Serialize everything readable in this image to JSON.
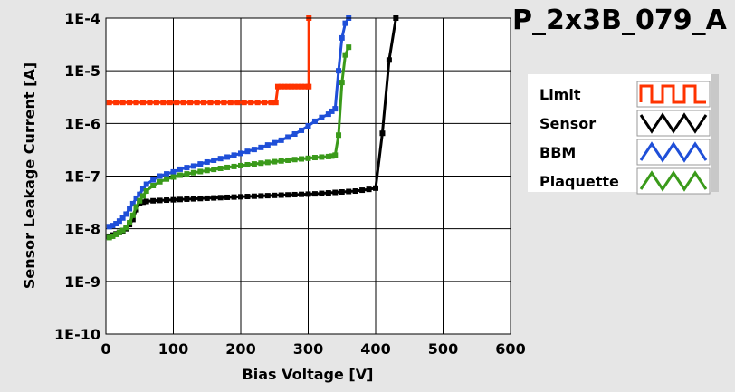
{
  "chart_data": {
    "type": "line",
    "title": "P_2x3B_079_A",
    "xlabel": "Bias Voltage [V]",
    "ylabel": "Sensor Leakage Current [A]",
    "xlim": [
      0,
      600
    ],
    "ylim": [
      1e-10,
      0.0001
    ],
    "yscale": "log",
    "grid": true,
    "legend_position": "right",
    "x_ticks": [
      "0",
      "100",
      "200",
      "300",
      "400",
      "500",
      "600"
    ],
    "y_ticks": [
      "1E-10",
      "1E-9",
      "1E-8",
      "1E-7",
      "1E-6",
      "1E-5",
      "1E-4"
    ],
    "series": [
      {
        "name": "Limit",
        "color": "#ff3300",
        "marker": "square",
        "x": [
          5,
          15,
          25,
          35,
          45,
          55,
          65,
          75,
          85,
          95,
          105,
          115,
          125,
          135,
          145,
          155,
          165,
          175,
          185,
          195,
          205,
          215,
          225,
          235,
          245,
          252,
          255,
          260,
          265,
          270,
          275,
          280,
          285,
          290,
          295,
          300,
          301,
          301
        ],
        "y": [
          2.5e-06,
          2.5e-06,
          2.5e-06,
          2.5e-06,
          2.5e-06,
          2.5e-06,
          2.5e-06,
          2.5e-06,
          2.5e-06,
          2.5e-06,
          2.5e-06,
          2.5e-06,
          2.5e-06,
          2.5e-06,
          2.5e-06,
          2.5e-06,
          2.5e-06,
          2.5e-06,
          2.5e-06,
          2.5e-06,
          2.5e-06,
          2.5e-06,
          2.5e-06,
          2.5e-06,
          2.5e-06,
          2.5e-06,
          5e-06,
          5e-06,
          5e-06,
          5e-06,
          5e-06,
          5e-06,
          5e-06,
          5e-06,
          5e-06,
          5e-06,
          5e-06,
          0.0001
        ]
      },
      {
        "name": "Sensor",
        "color": "#000000",
        "marker": "square",
        "x": [
          5,
          10,
          15,
          20,
          25,
          30,
          35,
          40,
          45,
          50,
          55,
          60,
          70,
          80,
          90,
          100,
          110,
          120,
          130,
          140,
          150,
          160,
          170,
          180,
          190,
          200,
          210,
          220,
          230,
          240,
          250,
          260,
          270,
          280,
          290,
          300,
          310,
          320,
          330,
          340,
          350,
          360,
          370,
          380,
          390,
          400,
          410,
          420,
          430
        ],
        "y": [
          7.2e-09,
          7.6e-09,
          8e-09,
          8.5e-09,
          9e-09,
          1e-08,
          1.2e-08,
          1.5e-08,
          2.3e-08,
          3e-08,
          3.2e-08,
          3.3e-08,
          3.4e-08,
          3.45e-08,
          3.5e-08,
          3.55e-08,
          3.6e-08,
          3.65e-08,
          3.7e-08,
          3.75e-08,
          3.8e-08,
          3.85e-08,
          3.9e-08,
          3.95e-08,
          4e-08,
          4.05e-08,
          4.1e-08,
          4.15e-08,
          4.2e-08,
          4.25e-08,
          4.3e-08,
          4.35e-08,
          4.4e-08,
          4.45e-08,
          4.5e-08,
          4.55e-08,
          4.6e-08,
          4.7e-08,
          4.8e-08,
          4.9e-08,
          5e-08,
          5.1e-08,
          5.2e-08,
          5.4e-08,
          5.6e-08,
          5.9e-08,
          6.5e-07,
          1.6e-05,
          0.0001
        ]
      },
      {
        "name": "BBM",
        "color": "#1f4fd8",
        "marker": "square",
        "x": [
          5,
          10,
          15,
          20,
          25,
          30,
          35,
          40,
          45,
          50,
          55,
          60,
          70,
          80,
          90,
          100,
          110,
          120,
          130,
          140,
          150,
          160,
          170,
          180,
          190,
          200,
          210,
          220,
          230,
          240,
          250,
          260,
          270,
          280,
          290,
          300,
          310,
          320,
          330,
          335,
          340,
          345,
          350,
          355,
          360
        ],
        "y": [
          1.1e-08,
          1.15e-08,
          1.25e-08,
          1.4e-08,
          1.6e-08,
          1.9e-08,
          2.4e-08,
          3e-08,
          3.8e-08,
          4.5e-08,
          5.8e-08,
          7e-08,
          8.5e-08,
          1e-07,
          1.1e-07,
          1.2e-07,
          1.35e-07,
          1.45e-07,
          1.55e-07,
          1.7e-07,
          1.85e-07,
          2e-07,
          2.15e-07,
          2.3e-07,
          2.5e-07,
          2.7e-07,
          2.95e-07,
          3.2e-07,
          3.5e-07,
          3.9e-07,
          4.3e-07,
          4.8e-07,
          5.5e-07,
          6.3e-07,
          7.4e-07,
          9e-07,
          1.1e-06,
          1.3e-06,
          1.5e-06,
          1.7e-06,
          1.9e-06,
          1e-05,
          4.2e-05,
          8e-05,
          0.0001
        ]
      },
      {
        "name": "Plaquette",
        "color": "#3a9a1a",
        "marker": "square",
        "x": [
          5,
          10,
          15,
          20,
          25,
          30,
          35,
          40,
          45,
          50,
          55,
          60,
          70,
          80,
          90,
          100,
          110,
          120,
          130,
          140,
          150,
          160,
          170,
          180,
          190,
          200,
          210,
          220,
          230,
          240,
          250,
          260,
          270,
          280,
          290,
          300,
          310,
          320,
          330,
          335,
          340,
          345,
          350,
          355,
          360
        ],
        "y": [
          6.8e-09,
          7.2e-09,
          7.8e-09,
          8.5e-09,
          9.3e-09,
          1.05e-08,
          1.3e-08,
          1.8e-08,
          2.6e-08,
          3.4e-08,
          4.2e-08,
          5.2e-08,
          6.6e-08,
          7.8e-08,
          8.8e-08,
          9.6e-08,
          1.04e-07,
          1.1e-07,
          1.16e-07,
          1.22e-07,
          1.28e-07,
          1.34e-07,
          1.4e-07,
          1.46e-07,
          1.52e-07,
          1.58e-07,
          1.64e-07,
          1.7e-07,
          1.76e-07,
          1.82e-07,
          1.88e-07,
          1.94e-07,
          2e-07,
          2.06e-07,
          2.12e-07,
          2.18e-07,
          2.25e-07,
          2.3e-07,
          2.35e-07,
          2.4e-07,
          2.5e-07,
          6e-07,
          6e-06,
          2e-05,
          2.8e-05
        ]
      }
    ]
  }
}
